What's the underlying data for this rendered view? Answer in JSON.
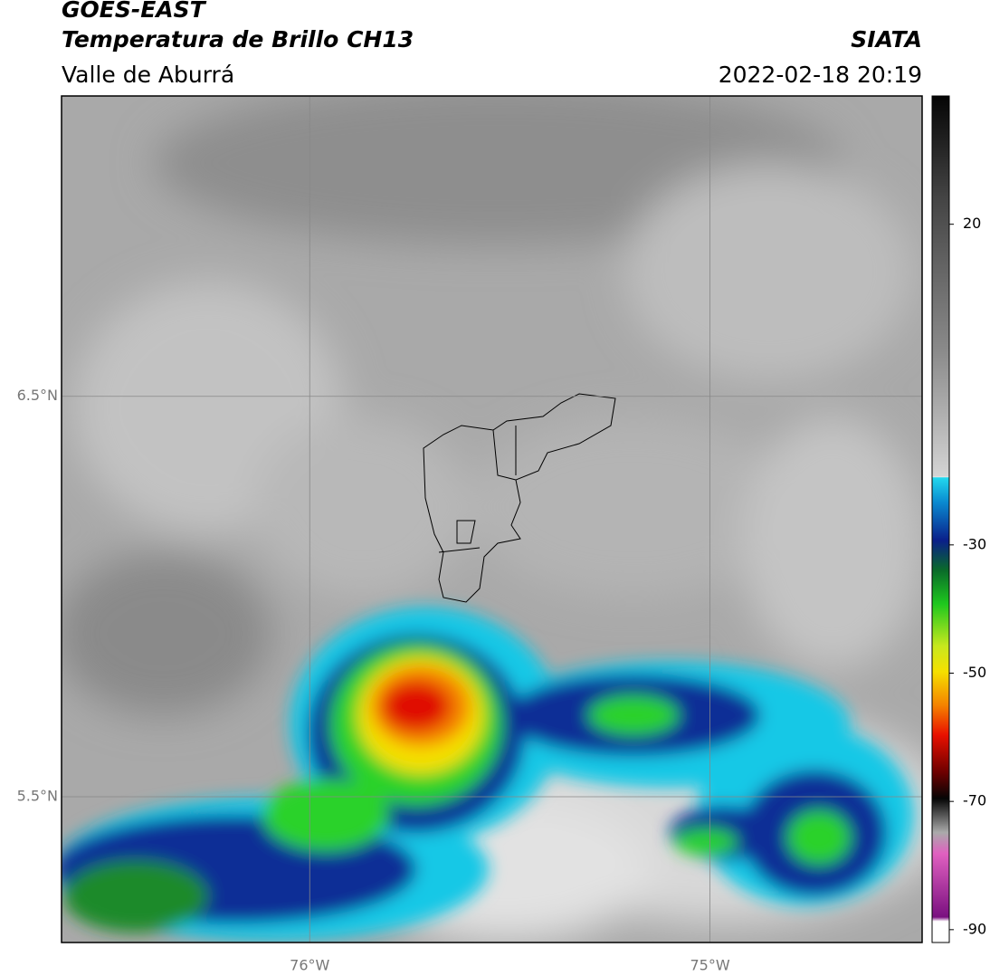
{
  "header": {
    "title": "GOES-EAST",
    "subtitle": "Temperatura de Brillo CH13",
    "region": "Valle de Aburrá",
    "source": "SIATA",
    "datetime": "2022-02-18 20:19"
  },
  "map": {
    "lat_lim": [
      5.136,
      7.25
    ],
    "lon_lim": [
      -76.62,
      -74.47
    ],
    "lat_ticks": [
      {
        "value": 6.5,
        "label": "6.5°N"
      },
      {
        "value": 5.5,
        "label": "5.5°N"
      }
    ],
    "lon_ticks": [
      {
        "value": -76,
        "label": "76°W"
      },
      {
        "value": -75,
        "label": "75°W"
      }
    ]
  },
  "colorbar": {
    "lim": [
      -92,
      40
    ],
    "ticks": [
      20,
      -30,
      -50,
      -70,
      -90
    ]
  }
}
